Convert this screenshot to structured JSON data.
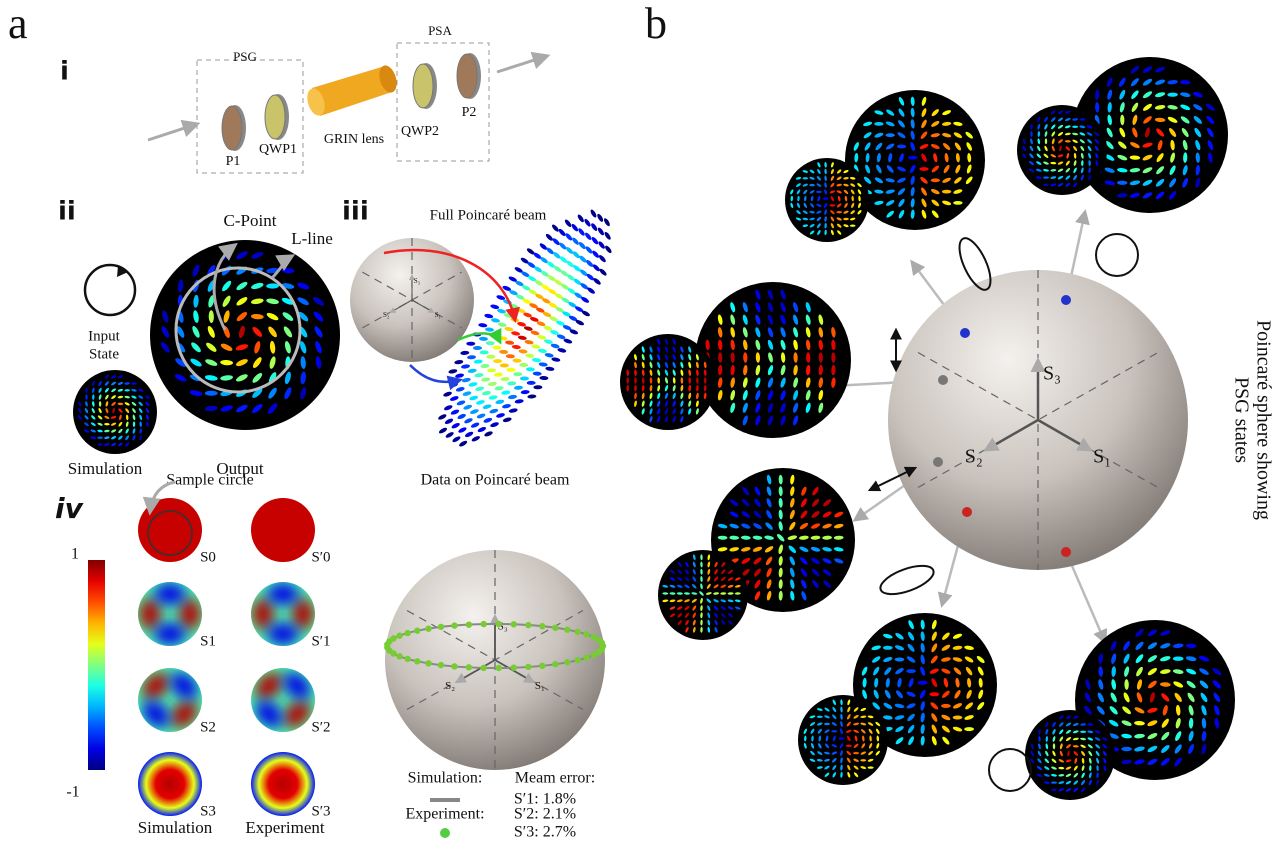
{
  "panel_a": {
    "label": "a",
    "setup": {
      "label": "i",
      "psg": "PSG",
      "psa": "PSA",
      "p1": "P1",
      "qwp1": "QWP1",
      "grin": "GRIN lens",
      "qwp2": "QWP2",
      "p2": "P2"
    },
    "vortex": {
      "label": "ii",
      "c_point": "C-Point",
      "l_line": "L-line",
      "input_state": [
        "Input",
        "State"
      ],
      "simulation": "Simulation",
      "output": "Output"
    },
    "full_beam": {
      "label": "iii",
      "title": "Full Poincaré beam",
      "axes": [
        "S₃",
        "S₂",
        "S₁"
      ]
    },
    "stokes": {
      "label": "iv",
      "sample_circle": "Sample circle",
      "colorbar": {
        "max": 1,
        "min": -1
      },
      "simulation_labels": [
        "S0",
        "S1",
        "S2",
        "S3"
      ],
      "experiment_labels": [
        "S′0",
        "S′1",
        "S′2",
        "S′3"
      ],
      "columns": [
        "Simulation",
        "Experiment"
      ]
    },
    "data_beam": {
      "title": "Data on Poincaré beam",
      "axes": [
        "S₃",
        "S₂",
        "S₁"
      ],
      "simulation": "Simulation:",
      "experiment": "Experiment:",
      "error_title": "Meam error:",
      "errors": [
        "S′1: 1.8%",
        "S′2: 2.1%",
        "S′3: 2.7%"
      ]
    }
  },
  "panel_b": {
    "label": "b",
    "axes": [
      "S₃",
      "S₂",
      "S₁"
    ],
    "caption": [
      "Poincaré sphere showing",
      "PSG  states"
    ]
  }
}
